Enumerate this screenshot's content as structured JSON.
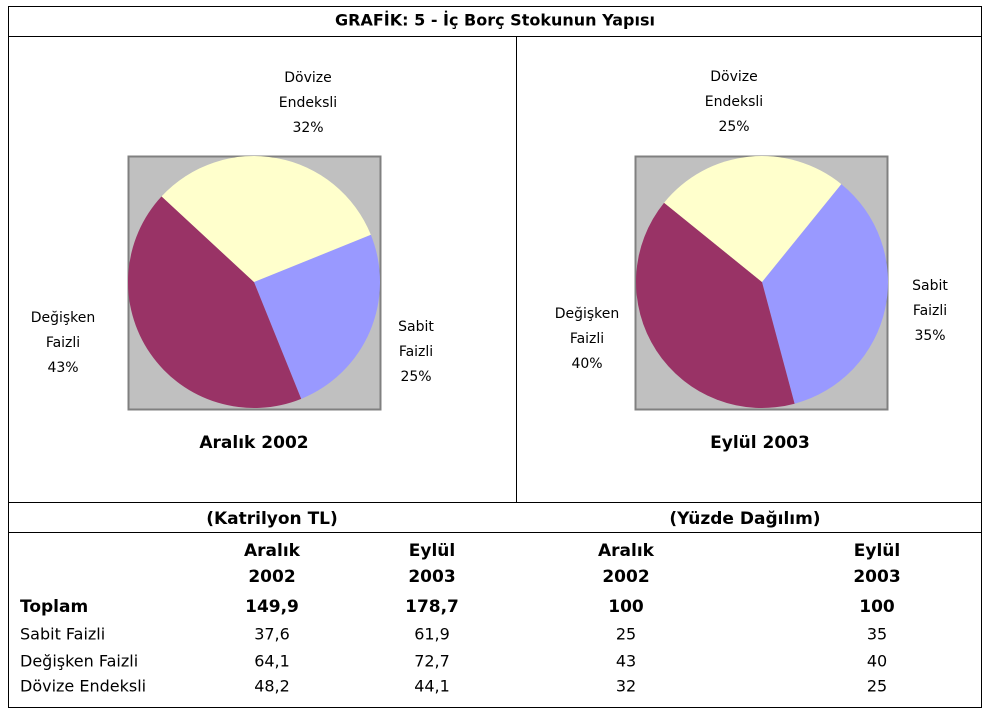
{
  "title": "GRAFİK: 5 - İç Borç Stokunun Yapısı",
  "chart_data": [
    {
      "type": "pie",
      "title": "Aralık 2002",
      "categories": [
        "Sabit Faizli",
        "Değişken Faizli",
        "Dövize Endeksli"
      ],
      "values": [
        25,
        43,
        32
      ],
      "value_labels": [
        "25%",
        "43%",
        "32%"
      ],
      "colors": [
        "#9999ff",
        "#993366",
        "#ffffcc"
      ]
    },
    {
      "type": "pie",
      "title": "Eylül 2003",
      "categories": [
        "Sabit Faizli",
        "Değişken Faizli",
        "Dövize Endeksli"
      ],
      "values": [
        35,
        40,
        25
      ],
      "value_labels": [
        "35%",
        "40%",
        "25%"
      ],
      "colors": [
        "#9999ff",
        "#993366",
        "#ffffcc"
      ]
    }
  ],
  "table": {
    "group_headers": [
      "(Katrilyon TL)",
      "(Yüzde Dağılım)"
    ],
    "column_headers": [
      "Aralık 2002",
      "Eylül 2003",
      "Aralık 2002",
      "Eylül 2003"
    ],
    "rows": [
      [
        "Toplam",
        "149,9",
        "178,7",
        "100",
        "100"
      ],
      [
        "Sabit Faizli",
        "37,6",
        "61,9",
        "25",
        "35"
      ],
      [
        "Değişken Faizli",
        "64,1",
        "72,7",
        "43",
        "40"
      ],
      [
        "Dövize Endeksli",
        "48,2",
        "44,1",
        "32",
        "25"
      ]
    ]
  }
}
